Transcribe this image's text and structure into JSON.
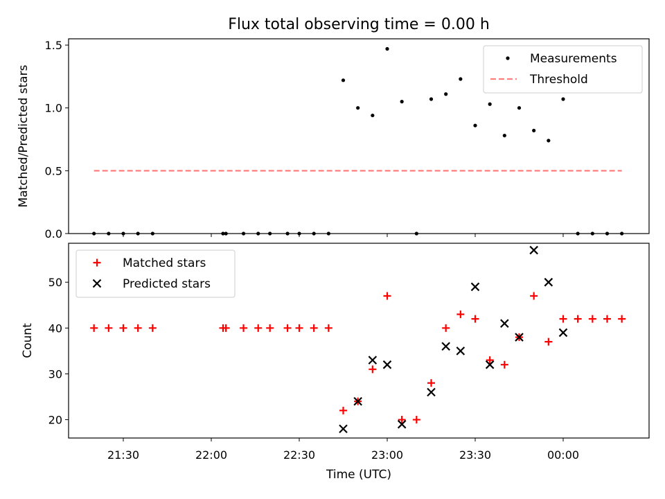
{
  "chart_data": {
    "type": "scatter",
    "title": "Flux total observing time = 0.00 h",
    "xlabel": "Time (UTC)",
    "x_tick_labels": [
      "21:30",
      "22:00",
      "22:30",
      "23:00",
      "23:30",
      "00:00"
    ],
    "colors": {
      "measurements": "#000000",
      "threshold": "#ff7f7f",
      "matched": "#ff0000",
      "predicted": "#000000"
    },
    "panels": [
      {
        "ylabel": "Matched/Predicted stars",
        "ylim": [
          0,
          1.55
        ],
        "y_ticks": [
          0.0,
          0.5,
          1.0,
          1.5
        ],
        "y_tick_labels": [
          "0.0",
          "0.5",
          "1.0",
          "1.5"
        ],
        "legend_placement": "top-right",
        "series": [
          {
            "name": "Measurements",
            "marker": "dot",
            "x": [
              "21:20",
              "21:25",
              "21:30",
              "21:35",
              "21:40",
              "22:04",
              "22:05",
              "22:11",
              "22:16",
              "22:20",
              "22:26",
              "22:30",
              "22:35",
              "22:40",
              "22:45",
              "22:50",
              "22:55",
              "23:00",
              "23:05",
              "23:10",
              "23:15",
              "23:20",
              "23:25",
              "23:30",
              "23:35",
              "23:40",
              "23:45",
              "23:50",
              "23:55",
              "24:00",
              "24:05",
              "24:10",
              "24:15",
              "24:20"
            ],
            "y": [
              0,
              0,
              0,
              0,
              0,
              0,
              0,
              0,
              0,
              0,
              0,
              0,
              0,
              0,
              1.22,
              1.0,
              0.94,
              1.47,
              1.05,
              0,
              1.07,
              1.11,
              1.23,
              0.86,
              1.03,
              0.78,
              1.0,
              0.82,
              0.74,
              1.07,
              0,
              0,
              0,
              0
            ]
          },
          {
            "name": "Threshold",
            "marker": "dashed-line",
            "x": [
              "21:20",
              "24:20"
            ],
            "y": [
              0.5,
              0.5
            ]
          }
        ]
      },
      {
        "ylabel": "Count",
        "ylim": [
          16,
          58.5
        ],
        "y_ticks": [
          20,
          30,
          40,
          50
        ],
        "y_tick_labels": [
          "20",
          "30",
          "40",
          "50"
        ],
        "legend_placement": "top-left",
        "series": [
          {
            "name": "Matched stars",
            "marker": "plus",
            "x": [
              "21:20",
              "21:25",
              "21:30",
              "21:35",
              "21:40",
              "22:04",
              "22:05",
              "22:11",
              "22:16",
              "22:20",
              "22:26",
              "22:30",
              "22:35",
              "22:40",
              "22:45",
              "22:50",
              "22:55",
              "23:00",
              "23:05",
              "23:10",
              "23:15",
              "23:20",
              "23:25",
              "23:30",
              "23:35",
              "23:40",
              "23:45",
              "23:50",
              "23:55",
              "24:00",
              "24:05",
              "24:10",
              "24:15",
              "24:20"
            ],
            "y": [
              40,
              40,
              40,
              40,
              40,
              40,
              40,
              40,
              40,
              40,
              40,
              40,
              40,
              40,
              22,
              24,
              31,
              47,
              20,
              20,
              28,
              40,
              43,
              42,
              33,
              32,
              38,
              47,
              37,
              42,
              42,
              42,
              42,
              42
            ]
          },
          {
            "name": "Predicted stars",
            "marker": "x",
            "x": [
              "22:45",
              "22:50",
              "22:55",
              "23:00",
              "23:05",
              "23:15",
              "23:20",
              "23:25",
              "23:30",
              "23:35",
              "23:40",
              "23:45",
              "23:50",
              "23:55",
              "24:00"
            ],
            "y": [
              18,
              24,
              33,
              32,
              19,
              26,
              36,
              35,
              49,
              32,
              41,
              38,
              57,
              50,
              39
            ]
          }
        ]
      }
    ]
  }
}
